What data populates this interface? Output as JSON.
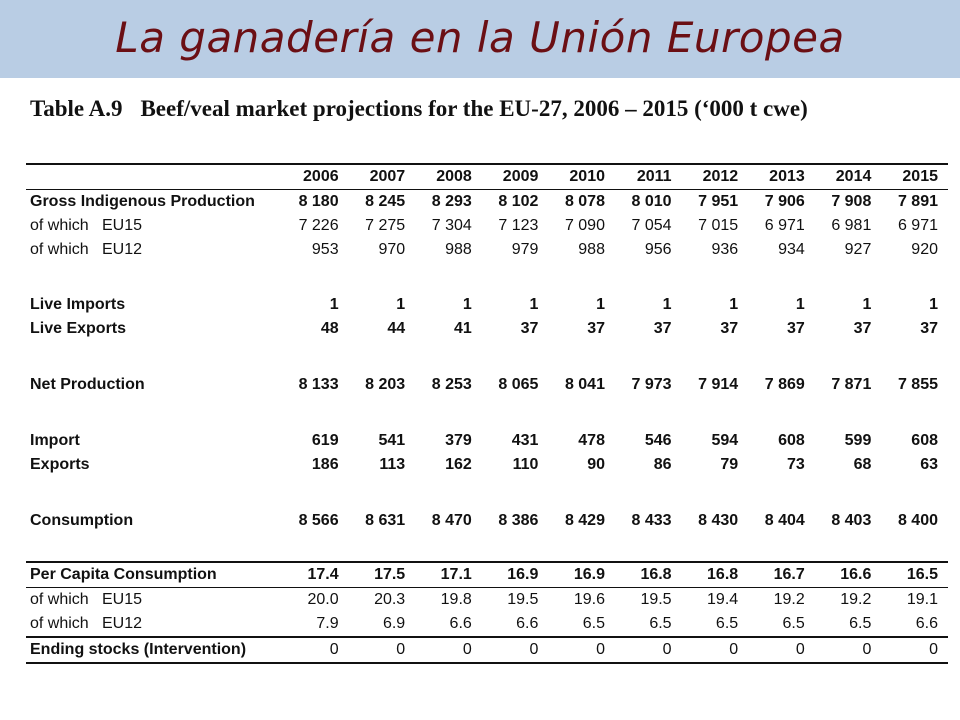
{
  "slide": {
    "title": "La ganadería en la Unión Europea"
  },
  "table": {
    "number": "Table A.9",
    "caption": "Beef/veal market projections for the EU-27, 2006 – 2015 (‘000 t cwe)",
    "years": [
      "2006",
      "2007",
      "2008",
      "2009",
      "2010",
      "2011",
      "2012",
      "2013",
      "2014",
      "2015"
    ],
    "rows": {
      "gross": {
        "label": "Gross Indigenous Production",
        "values": [
          "8 180",
          "8 245",
          "8 293",
          "8 102",
          "8 078",
          "8 010",
          "7 951",
          "7 906",
          "7 908",
          "7 891"
        ]
      },
      "gross_eu15": {
        "label_a": "of which",
        "label_b": "EU15",
        "values": [
          "7 226",
          "7 275",
          "7 304",
          "7 123",
          "7 090",
          "7 054",
          "7 015",
          "6 971",
          "6 981",
          "6 971"
        ]
      },
      "gross_eu12": {
        "label_a": "of which",
        "label_b": "EU12",
        "values": [
          "953",
          "970",
          "988",
          "979",
          "988",
          "956",
          "936",
          "934",
          "927",
          "920"
        ]
      },
      "live_imports": {
        "label": "Live Imports",
        "values": [
          "1",
          "1",
          "1",
          "1",
          "1",
          "1",
          "1",
          "1",
          "1",
          "1"
        ]
      },
      "live_exports": {
        "label": "Live Exports",
        "values": [
          "48",
          "44",
          "41",
          "37",
          "37",
          "37",
          "37",
          "37",
          "37",
          "37"
        ]
      },
      "net_production": {
        "label": "Net Production",
        "values": [
          "8 133",
          "8 203",
          "8 253",
          "8 065",
          "8 041",
          "7 973",
          "7 914",
          "7 869",
          "7 871",
          "7 855"
        ]
      },
      "import": {
        "label": "Import",
        "values": [
          "619",
          "541",
          "379",
          "431",
          "478",
          "546",
          "594",
          "608",
          "599",
          "608"
        ]
      },
      "exports": {
        "label": "Exports",
        "values": [
          "186",
          "113",
          "162",
          "110",
          "90",
          "86",
          "79",
          "73",
          "68",
          "63"
        ]
      },
      "consumption": {
        "label": "Consumption",
        "values": [
          "8 566",
          "8 631",
          "8 470",
          "8 386",
          "8 429",
          "8 433",
          "8 430",
          "8 404",
          "8 403",
          "8 400"
        ]
      },
      "per_capita": {
        "label": "Per Capita Consumption",
        "values": [
          "17.4",
          "17.5",
          "17.1",
          "16.9",
          "16.9",
          "16.8",
          "16.8",
          "16.7",
          "16.6",
          "16.5"
        ]
      },
      "pc_eu15": {
        "label_a": "of which",
        "label_b": "EU15",
        "values": [
          "20.0",
          "20.3",
          "19.8",
          "19.5",
          "19.6",
          "19.5",
          "19.4",
          "19.2",
          "19.2",
          "19.1"
        ]
      },
      "pc_eu12": {
        "label_a": "of which",
        "label_b": "EU12",
        "values": [
          "7.9",
          "6.9",
          "6.6",
          "6.6",
          "6.5",
          "6.5",
          "6.5",
          "6.5",
          "6.5",
          "6.6"
        ]
      },
      "ending_stocks": {
        "label": "Ending stocks (Intervention)",
        "values": [
          "0",
          "0",
          "0",
          "0",
          "0",
          "0",
          "0",
          "0",
          "0",
          "0"
        ]
      }
    }
  },
  "colors": {
    "title_band": "#b9cde4",
    "title_text": "#6b0f14"
  }
}
